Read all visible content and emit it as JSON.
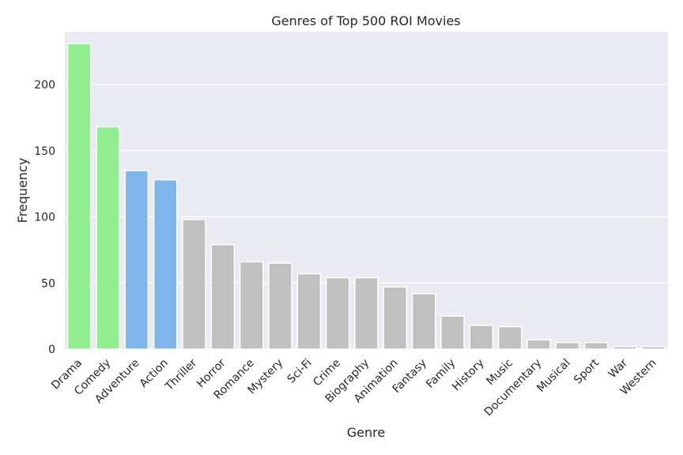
{
  "chart_data": {
    "type": "bar",
    "title": "Genres of Top 500 ROI Movies",
    "xlabel": "Genre",
    "ylabel": "Frequency",
    "ylim": [
      0,
      240
    ],
    "yticks": [
      0,
      50,
      100,
      150,
      200
    ],
    "grid": true,
    "categories": [
      "Drama",
      "Comedy",
      "Adventure",
      "Action",
      "Thriller",
      "Horror",
      "Romance",
      "Mystery",
      "Sci-Fi",
      "Crime",
      "Biography",
      "Animation",
      "Fantasy",
      "Family",
      "History",
      "Music",
      "Documentary",
      "Musical",
      "Sport",
      "War",
      "Western"
    ],
    "values": [
      231,
      168,
      135,
      128,
      98,
      79,
      66,
      65,
      57,
      54,
      54,
      47,
      42,
      25,
      18,
      17,
      7,
      5,
      5,
      2,
      2
    ],
    "bar_colors": [
      "#90ee90",
      "#90ee90",
      "#7eb6ec",
      "#7eb6ec",
      "#c0c0c0",
      "#c0c0c0",
      "#c0c0c0",
      "#c0c0c0",
      "#c0c0c0",
      "#c0c0c0",
      "#c0c0c0",
      "#c0c0c0",
      "#c0c0c0",
      "#c0c0c0",
      "#c0c0c0",
      "#c0c0c0",
      "#c0c0c0",
      "#c0c0c0",
      "#c0c0c0",
      "#c0c0c0",
      "#c0c0c0"
    ]
  }
}
